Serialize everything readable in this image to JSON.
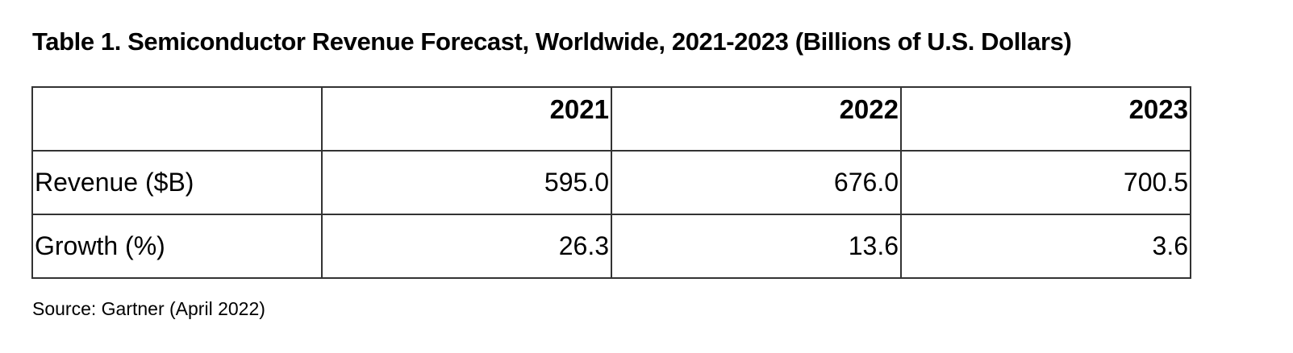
{
  "title": "Table 1. Semiconductor Revenue Forecast, Worldwide, 2021-2023 (Billions of U.S. Dollars)",
  "table": {
    "header": [
      "",
      "2021",
      "2022",
      "2023"
    ],
    "rows": [
      {
        "label": "Revenue ($B)",
        "values": [
          "595.0",
          "676.0",
          "700.5"
        ]
      },
      {
        "label": "Growth (%)",
        "values": [
          "26.3",
          "13.6",
          "3.6"
        ]
      }
    ]
  },
  "source": "Source: Gartner (April 2022)"
}
